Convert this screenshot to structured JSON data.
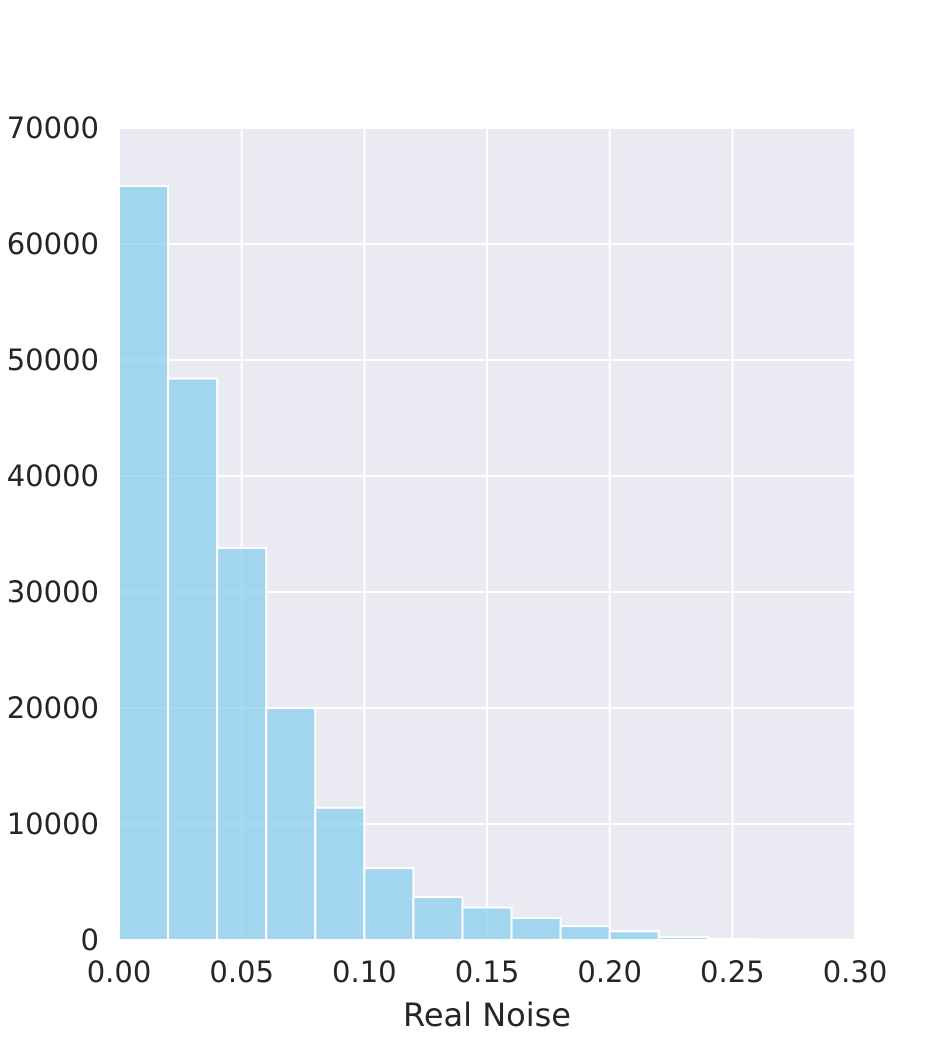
{
  "chart_data": {
    "type": "bar",
    "subtype": "histogram",
    "title": "",
    "xlabel": "Real Noise",
    "ylabel": "",
    "xlim": [
      0.0,
      0.3
    ],
    "ylim": [
      0,
      70000
    ],
    "grid": true,
    "x_ticks": [
      "0.00",
      "0.05",
      "0.10",
      "0.15",
      "0.20",
      "0.25",
      "0.30"
    ],
    "y_ticks": [
      "0",
      "10000",
      "20000",
      "30000",
      "40000",
      "50000",
      "60000",
      "70000"
    ],
    "bin_edges": [
      0.0,
      0.02,
      0.04,
      0.06,
      0.08,
      0.1,
      0.12,
      0.14,
      0.16,
      0.18,
      0.2,
      0.22,
      0.24,
      0.26,
      0.28,
      0.3
    ],
    "values": [
      65000,
      48400,
      33800,
      20000,
      11400,
      6200,
      3700,
      2800,
      1900,
      1200,
      750,
      250,
      80,
      30,
      10
    ],
    "colors": {
      "bar": "#87ceeb",
      "plot_background": "#eaeaf2",
      "grid": "#ffffff",
      "text": "#262626"
    }
  }
}
